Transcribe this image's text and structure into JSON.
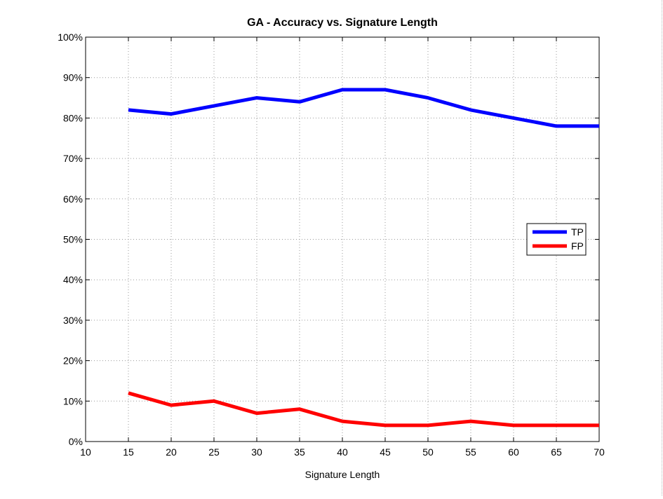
{
  "chart_data": {
    "type": "line",
    "title": "GA - Accuracy vs. Signature Length",
    "xlabel": "Signature Length",
    "ylabel": "",
    "xlim": [
      10,
      70
    ],
    "ylim": [
      0,
      100
    ],
    "x_ticks": [
      10,
      15,
      20,
      25,
      30,
      35,
      40,
      45,
      50,
      55,
      60,
      65,
      70
    ],
    "y_ticks": [
      0,
      10,
      20,
      30,
      40,
      50,
      60,
      70,
      80,
      90,
      100
    ],
    "y_tick_labels": [
      "0%",
      "10%",
      "20%",
      "30%",
      "40%",
      "50%",
      "60%",
      "70%",
      "80%",
      "90%",
      "100%"
    ],
    "grid": true,
    "legend_position": "right",
    "x": [
      15,
      20,
      25,
      30,
      35,
      40,
      45,
      50,
      55,
      60,
      65,
      70
    ],
    "series": [
      {
        "name": "TP",
        "color": "#0000ff",
        "values": [
          82,
          81,
          83,
          85,
          84,
          87,
          87,
          85,
          82,
          80,
          78,
          78
        ]
      },
      {
        "name": "FP",
        "color": "#ff0000",
        "values": [
          12,
          9,
          10,
          7,
          8,
          5,
          4,
          4,
          5,
          4,
          4,
          4
        ]
      }
    ]
  }
}
